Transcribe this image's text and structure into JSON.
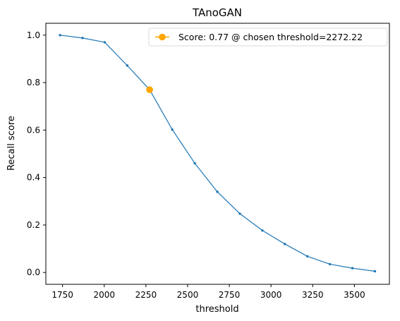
{
  "chart_data": {
    "type": "line",
    "title": "TAnoGAN",
    "xlabel": "threshold",
    "ylabel": "Recall score",
    "xlim": [
      1650,
      3710
    ],
    "ylim": [
      -0.05,
      1.05
    ],
    "x_ticks": [
      1750,
      2000,
      2250,
      2500,
      2750,
      3000,
      3250,
      3500
    ],
    "x_tick_labels": [
      "1750",
      "2000",
      "2250",
      "2500",
      "2750",
      "3000",
      "3250",
      "3500"
    ],
    "y_ticks": [
      0.0,
      0.2,
      0.4,
      0.6,
      0.8,
      1.0
    ],
    "y_tick_labels": [
      "0.0",
      "0.2",
      "0.4",
      "0.6",
      "0.8",
      "1.0"
    ],
    "grid": false,
    "legend_position": "top-right",
    "series": [
      {
        "color": "#1f77b4",
        "x": [
          1735,
          1870,
          2003,
          2138,
          2272.22,
          2408,
          2543,
          2678,
          2813,
          2948,
          3083,
          3218,
          3353,
          3488,
          3623
        ],
        "y": [
          1.0,
          0.988,
          0.97,
          0.872,
          0.77,
          0.602,
          0.46,
          0.34,
          0.248,
          0.177,
          0.12,
          0.068,
          0.035,
          0.018,
          0.005
        ]
      },
      {
        "name": "Score: 0.77 @ chosen threshold=2272.22",
        "color": "#ffa500",
        "x": [
          2272.22
        ],
        "y": [
          0.77
        ]
      }
    ]
  }
}
